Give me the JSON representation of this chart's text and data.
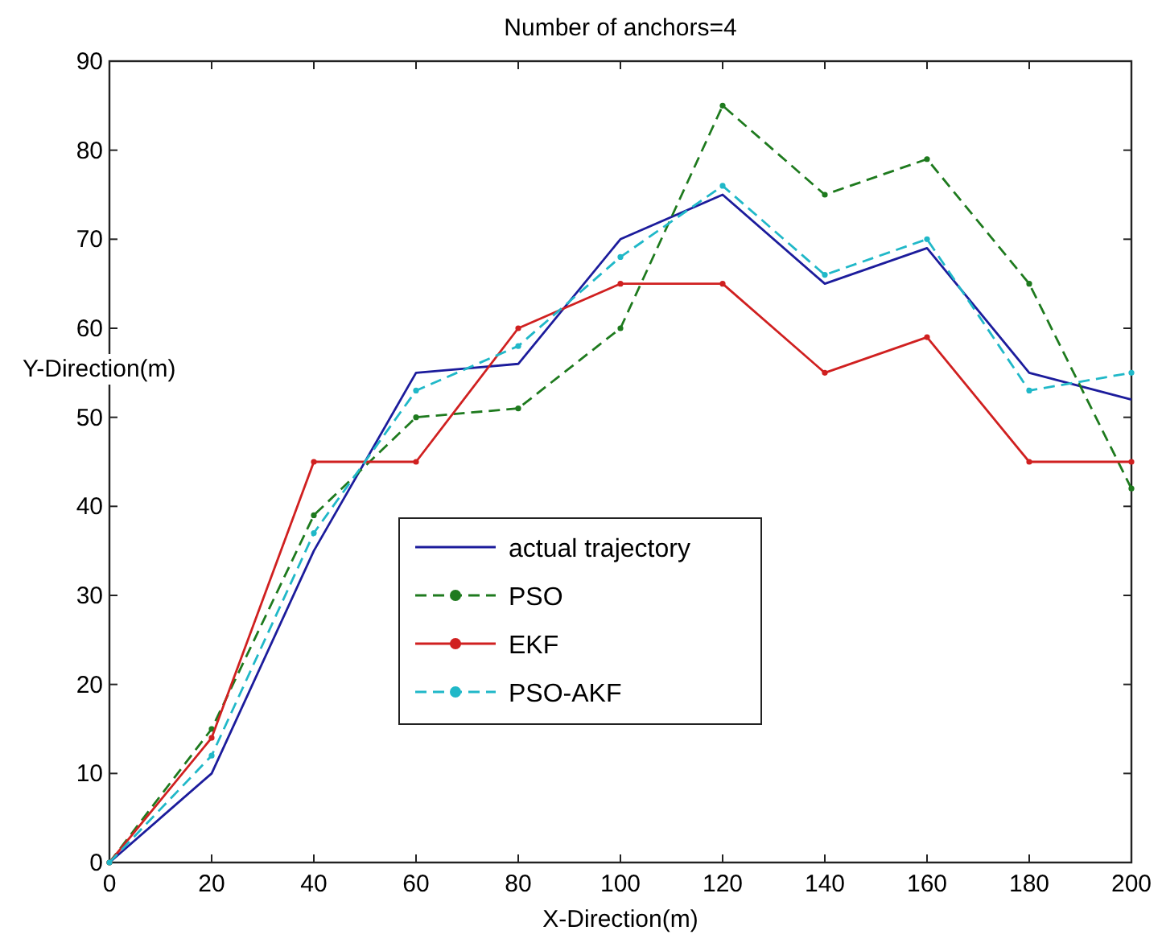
{
  "chart_data": {
    "type": "line",
    "title": "Number of anchors=4",
    "xlabel": "X-Direction(m)",
    "ylabel": "Y-Direction(m)",
    "xlim": [
      0,
      200
    ],
    "xticks": [
      0,
      20,
      40,
      60,
      80,
      100,
      120,
      140,
      160,
      180,
      200
    ],
    "ylim": [
      0,
      90
    ],
    "yticks": [
      0,
      10,
      20,
      30,
      40,
      50,
      60,
      70,
      80,
      90
    ],
    "grid": false,
    "legend": "center",
    "series": [
      {
        "name": "actual trajectory",
        "color": "#1c1c9c",
        "line_style": "solid",
        "marker": "none",
        "x": [
          0,
          10,
          20,
          40,
          60,
          70,
          80,
          100,
          120,
          140,
          160,
          180,
          200
        ],
        "values": [
          0,
          5,
          10,
          35,
          55,
          55.5,
          56,
          70,
          75,
          65,
          69,
          55,
          52
        ]
      },
      {
        "name": "PSO",
        "color": "#1e7a1e",
        "line_style": "dashed",
        "marker": "circle",
        "x": [
          0,
          20,
          40,
          60,
          80,
          100,
          120,
          140,
          160,
          180,
          200
        ],
        "values": [
          0,
          15,
          39,
          50,
          51,
          60,
          85,
          75,
          79,
          65,
          42
        ]
      },
      {
        "name": "EKF",
        "color": "#d02020",
        "line_style": "solid",
        "marker": "circle",
        "x": [
          0,
          20,
          40,
          60,
          80,
          100,
          120,
          140,
          160,
          180,
          200
        ],
        "values": [
          0,
          14,
          45,
          45,
          60,
          65,
          65,
          55,
          59,
          45,
          45
        ]
      },
      {
        "name": "PSO-AKF",
        "color": "#20b8c8",
        "line_style": "dashed",
        "marker": "circle",
        "x": [
          0,
          20,
          40,
          60,
          80,
          100,
          120,
          140,
          160,
          180,
          200
        ],
        "values": [
          0,
          12,
          37,
          53,
          58,
          68,
          76,
          66,
          70,
          53,
          55
        ]
      }
    ]
  }
}
